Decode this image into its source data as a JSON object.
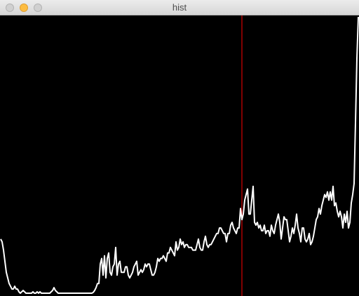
{
  "window": {
    "title": "hist"
  },
  "titlebar_buttons": [
    {
      "name": "close-button",
      "color": "#d0d0d0"
    },
    {
      "name": "minimize-button",
      "color": "#fdbc40"
    },
    {
      "name": "zoom-button",
      "color": "#d0d0d0"
    }
  ],
  "colors": {
    "background": "#000000",
    "histogram_line": "#ffffff",
    "marker_line": "#ff0000"
  },
  "chart_data": {
    "type": "line",
    "xlim": [
      0,
      255
    ],
    "ylim": [
      0,
      100
    ],
    "grid": false,
    "marker_x": 172,
    "series": [
      {
        "values": [
          20,
          19,
          16,
          12,
          8,
          6,
          4,
          3,
          2,
          2,
          3,
          2,
          2,
          1,
          0.5,
          1,
          1.5,
          1,
          0.5,
          0.5,
          0.5,
          0.5,
          0.5,
          1,
          0.5,
          0.5,
          1,
          0.5,
          1,
          0.5,
          0.5,
          0.5,
          0.5,
          0.5,
          0.5,
          0.5,
          1,
          1.5,
          2.5,
          1.5,
          1,
          0.5,
          0.5,
          0.5,
          0.5,
          0.5,
          0.5,
          0.5,
          0.5,
          0.5,
          0.5,
          0.5,
          0.5,
          0.5,
          0.5,
          0.5,
          0.5,
          0.5,
          0.5,
          0.5,
          0.5,
          0.5,
          0.5,
          0.5,
          0.5,
          0.5,
          0.8,
          1.5,
          2.5,
          4,
          4,
          11,
          13,
          7,
          14,
          6,
          13,
          15,
          8,
          7,
          10,
          11,
          17,
          7,
          11,
          12,
          8,
          8,
          8,
          10,
          10,
          7,
          6,
          7,
          8,
          10,
          11,
          12,
          7,
          8,
          9,
          8,
          9,
          11,
          10,
          11,
          11,
          9,
          7,
          7,
          8,
          10,
          13,
          12,
          13,
          13,
          14,
          13,
          12,
          15,
          15,
          17,
          16,
          15,
          14,
          19,
          16,
          17,
          20,
          18,
          19,
          17,
          18,
          18,
          17,
          17,
          17,
          16,
          16,
          16,
          18,
          20,
          17,
          16,
          16,
          19,
          21,
          18,
          17,
          18,
          18,
          19,
          20,
          21,
          22,
          22,
          24,
          24,
          23,
          22,
          22,
          19,
          22,
          22,
          25,
          26,
          24,
          23,
          22,
          24,
          24,
          31,
          27,
          29,
          34,
          36,
          38,
          29,
          29,
          34,
          39,
          26,
          25,
          26,
          24,
          25,
          23,
          23,
          25,
          22,
          23,
          23,
          21,
          25,
          23,
          22,
          25,
          27,
          29,
          26,
          20,
          24,
          28,
          27,
          27,
          23,
          19,
          21,
          24,
          22,
          25,
          29,
          24,
          22,
          19,
          24,
          24,
          20,
          19,
          20,
          22,
          18,
          19,
          21,
          24,
          27,
          28,
          31,
          29,
          32,
          34,
          36,
          35,
          37,
          34,
          37,
          34,
          39,
          32,
          33,
          30,
          28,
          30,
          28,
          24,
          29,
          26,
          30,
          24,
          26,
          33,
          36,
          40,
          62,
          85,
          100
        ]
      }
    ]
  }
}
